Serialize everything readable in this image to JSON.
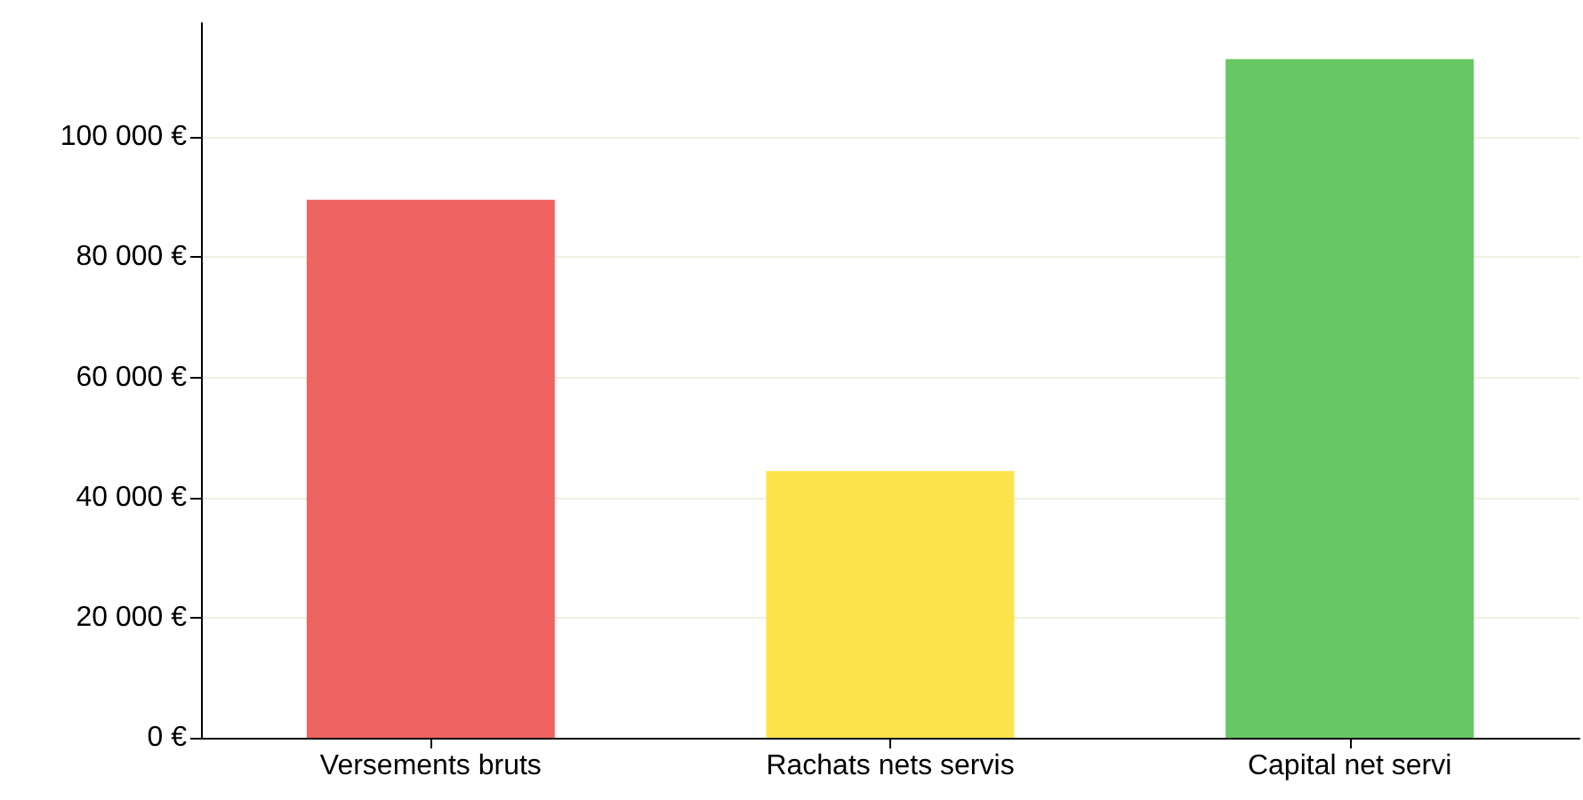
{
  "chart_data": {
    "type": "bar",
    "categories": [
      "Versements bruts",
      "Rachats nets servis",
      "Capital net servi"
    ],
    "values": [
      89600,
      44400,
      113000
    ],
    "colors": [
      "#ef6461",
      "#fde44b",
      "#66c763"
    ],
    "ylim": [
      0,
      119000
    ],
    "yticks": [
      {
        "value": 0,
        "label": "0 €"
      },
      {
        "value": 20000,
        "label": "20 000 €"
      },
      {
        "value": 40000,
        "label": "40 000 €"
      },
      {
        "value": 60000,
        "label": "60 000 €"
      },
      {
        "value": 80000,
        "label": "80 000 €"
      },
      {
        "value": 100000,
        "label": "100 000 €"
      }
    ],
    "grid": "y"
  }
}
